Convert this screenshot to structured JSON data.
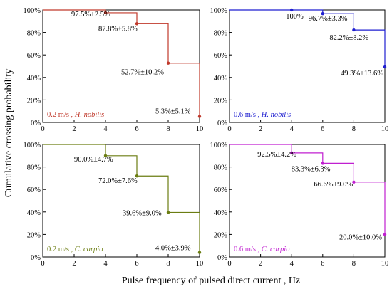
{
  "figure": {
    "ylabel": "Cumulative crossing probability",
    "xlabel": "Pulse frequency of pulsed direct current , Hz"
  },
  "chart_data": [
    {
      "type": "line",
      "step": "post",
      "panel": "top-left",
      "label_speed": "0.2 m/s ,",
      "label_species": "H. nobilis",
      "color": "#c0392b",
      "x": [
        0,
        4,
        6,
        8,
        10
      ],
      "values": [
        100,
        97.5,
        87.8,
        52.7,
        5.3
      ],
      "point_labels": [
        "",
        "97.5%±2.5%",
        "87.8%±5.8%",
        "52.7%±10.2%",
        "5.3%±5.1%"
      ],
      "xlim": [
        0,
        10
      ],
      "ylim": [
        0,
        100
      ],
      "xticks": [
        "0",
        "2",
        "4",
        "6",
        "8",
        "10"
      ],
      "yticks": [
        "0%",
        "20%",
        "40%",
        "60%",
        "80%",
        "100%"
      ]
    },
    {
      "type": "line",
      "step": "post",
      "panel": "top-right",
      "label_speed": "0.6 m/s ,",
      "label_species": "H. nobilis",
      "color": "#1f1fd0",
      "x": [
        0,
        4,
        6,
        8,
        10
      ],
      "values": [
        100,
        100,
        96.7,
        82.2,
        49.3
      ],
      "point_labels": [
        "",
        "100%",
        "96.7%±3.3%",
        "82.2%±8.2%",
        "49.3%±13.6%"
      ],
      "xlim": [
        0,
        10
      ],
      "ylim": [
        0,
        100
      ],
      "xticks": [
        "0",
        "2",
        "4",
        "6",
        "8",
        "10"
      ],
      "yticks": [
        "0%",
        "20%",
        "40%",
        "60%",
        "80%",
        "100%"
      ]
    },
    {
      "type": "line",
      "step": "post",
      "panel": "bottom-left",
      "label_speed": "0.2 m/s ,",
      "label_species": "C. carpio",
      "color": "#6b7d12",
      "x": [
        0,
        4,
        6,
        8,
        10
      ],
      "values": [
        100,
        90.0,
        72.0,
        39.6,
        4.0
      ],
      "point_labels": [
        "",
        "90.0%±4.7%",
        "72.0%±7.6%",
        "39.6%±9.0%",
        "4.0%±3.9%"
      ],
      "xlim": [
        0,
        10
      ],
      "ylim": [
        0,
        100
      ],
      "xticks": [
        "0",
        "2",
        "4",
        "6",
        "8",
        "10"
      ],
      "yticks": [
        "0%",
        "20%",
        "40%",
        "60%",
        "80%",
        "100%"
      ]
    },
    {
      "type": "line",
      "step": "post",
      "panel": "bottom-right",
      "label_speed": "0.6 m/s ,",
      "label_species": "C. carpio",
      "color": "#c01fd0",
      "x": [
        0,
        4,
        6,
        8,
        10
      ],
      "values": [
        100,
        92.5,
        83.3,
        66.6,
        20.0
      ],
      "point_labels": [
        "",
        "92.5%±4.2%",
        "83.3%±6.3%",
        "66.6%±9.0%",
        "20.0%±10.0%"
      ],
      "xlim": [
        0,
        10
      ],
      "ylim": [
        0,
        100
      ],
      "xticks": [
        "0",
        "2",
        "4",
        "6",
        "8",
        "10"
      ],
      "yticks": [
        "0%",
        "20%",
        "40%",
        "60%",
        "80%",
        "100%"
      ]
    }
  ]
}
